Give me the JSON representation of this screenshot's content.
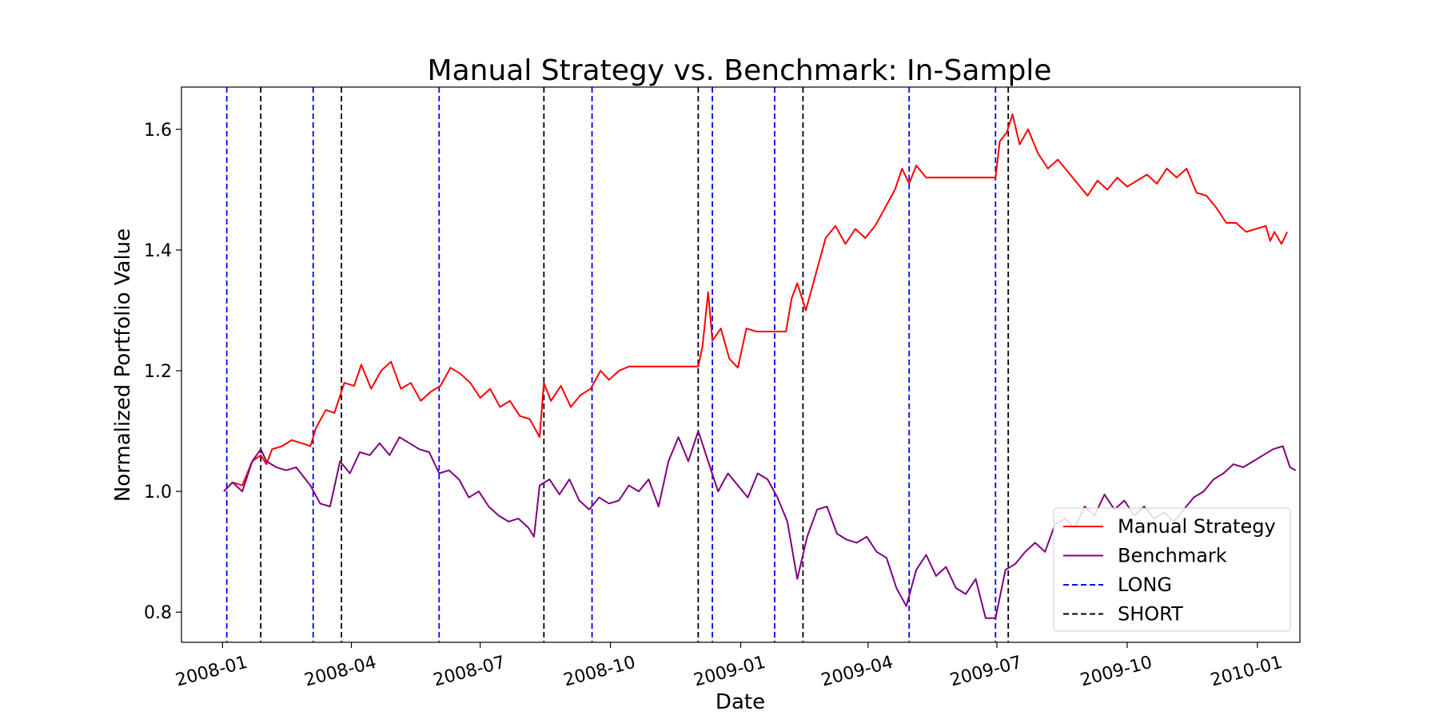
{
  "chart_data": {
    "type": "line",
    "title": "Manual Strategy vs. Benchmark: In-Sample",
    "xlabel": "Date",
    "ylabel": "Normalized Portfolio Value",
    "xlim": [
      "2007-12-03",
      "2010-01-31"
    ],
    "ylim": [
      0.75,
      1.67
    ],
    "x_ticks": [
      "2008-01",
      "2008-04",
      "2008-07",
      "2008-10",
      "2009-01",
      "2009-04",
      "2009-07",
      "2009-10",
      "2010-01"
    ],
    "y_ticks": [
      0.8,
      1.0,
      1.2,
      1.4,
      1.6
    ],
    "y_tick_labels": [
      "0.8",
      "1.0",
      "1.2",
      "1.4",
      "1.6"
    ],
    "grid": false,
    "legend_position": "lower-right",
    "series": [
      {
        "name": "Manual Strategy",
        "color": "#ff0000",
        "points": [
          [
            "2008-01-02",
            1.0
          ],
          [
            "2008-01-08",
            1.015
          ],
          [
            "2008-01-15",
            1.01
          ],
          [
            "2008-01-22",
            1.05
          ],
          [
            "2008-01-28",
            1.06
          ],
          [
            "2008-02-01",
            1.045
          ],
          [
            "2008-02-05",
            1.07
          ],
          [
            "2008-02-12",
            1.075
          ],
          [
            "2008-02-19",
            1.085
          ],
          [
            "2008-02-26",
            1.08
          ],
          [
            "2008-03-03",
            1.075
          ],
          [
            "2008-03-07",
            1.105
          ],
          [
            "2008-03-14",
            1.135
          ],
          [
            "2008-03-20",
            1.13
          ],
          [
            "2008-03-27",
            1.18
          ],
          [
            "2008-04-03",
            1.175
          ],
          [
            "2008-04-08",
            1.21
          ],
          [
            "2008-04-15",
            1.17
          ],
          [
            "2008-04-22",
            1.2
          ],
          [
            "2008-04-29",
            1.215
          ],
          [
            "2008-05-06",
            1.17
          ],
          [
            "2008-05-13",
            1.18
          ],
          [
            "2008-05-20",
            1.15
          ],
          [
            "2008-05-27",
            1.165
          ],
          [
            "2008-06-03",
            1.175
          ],
          [
            "2008-06-10",
            1.205
          ],
          [
            "2008-06-17",
            1.195
          ],
          [
            "2008-06-24",
            1.18
          ],
          [
            "2008-07-01",
            1.155
          ],
          [
            "2008-07-08",
            1.17
          ],
          [
            "2008-07-15",
            1.14
          ],
          [
            "2008-07-22",
            1.15
          ],
          [
            "2008-07-29",
            1.125
          ],
          [
            "2008-08-05",
            1.12
          ],
          [
            "2008-08-12",
            1.09
          ],
          [
            "2008-08-15",
            1.18
          ],
          [
            "2008-08-20",
            1.15
          ],
          [
            "2008-08-27",
            1.175
          ],
          [
            "2008-09-03",
            1.14
          ],
          [
            "2008-09-10",
            1.16
          ],
          [
            "2008-09-17",
            1.17
          ],
          [
            "2008-09-24",
            1.2
          ],
          [
            "2008-09-30",
            1.185
          ],
          [
            "2008-10-07",
            1.2
          ],
          [
            "2008-10-14",
            1.207
          ],
          [
            "2008-12-02",
            1.207
          ],
          [
            "2008-12-05",
            1.24
          ],
          [
            "2008-12-09",
            1.33
          ],
          [
            "2008-12-12",
            1.25
          ],
          [
            "2008-12-18",
            1.27
          ],
          [
            "2008-12-24",
            1.22
          ],
          [
            "2008-12-30",
            1.205
          ],
          [
            "2009-01-05",
            1.27
          ],
          [
            "2009-01-12",
            1.265
          ],
          [
            "2009-01-19",
            1.265
          ],
          [
            "2009-01-26",
            1.265
          ],
          [
            "2009-02-02",
            1.265
          ],
          [
            "2009-02-06",
            1.32
          ],
          [
            "2009-02-10",
            1.345
          ],
          [
            "2009-02-16",
            1.3
          ],
          [
            "2009-02-23",
            1.36
          ],
          [
            "2009-03-02",
            1.42
          ],
          [
            "2009-03-09",
            1.44
          ],
          [
            "2009-03-16",
            1.41
          ],
          [
            "2009-03-23",
            1.435
          ],
          [
            "2009-03-30",
            1.42
          ],
          [
            "2009-04-06",
            1.44
          ],
          [
            "2009-04-13",
            1.47
          ],
          [
            "2009-04-20",
            1.5
          ],
          [
            "2009-04-25",
            1.535
          ],
          [
            "2009-04-30",
            1.51
          ],
          [
            "2009-05-05",
            1.54
          ],
          [
            "2009-05-12",
            1.52
          ],
          [
            "2009-06-01",
            1.52
          ],
          [
            "2009-06-25",
            1.52
          ],
          [
            "2009-06-30",
            1.52
          ],
          [
            "2009-07-03",
            1.58
          ],
          [
            "2009-07-08",
            1.595
          ],
          [
            "2009-07-12",
            1.625
          ],
          [
            "2009-07-17",
            1.575
          ],
          [
            "2009-07-23",
            1.6
          ],
          [
            "2009-07-30",
            1.56
          ],
          [
            "2009-08-06",
            1.535
          ],
          [
            "2009-08-13",
            1.55
          ],
          [
            "2009-08-20",
            1.53
          ],
          [
            "2009-08-27",
            1.51
          ],
          [
            "2009-09-03",
            1.49
          ],
          [
            "2009-09-10",
            1.515
          ],
          [
            "2009-09-17",
            1.5
          ],
          [
            "2009-09-24",
            1.52
          ],
          [
            "2009-10-01",
            1.505
          ],
          [
            "2009-10-08",
            1.515
          ],
          [
            "2009-10-15",
            1.525
          ],
          [
            "2009-10-22",
            1.51
          ],
          [
            "2009-10-29",
            1.535
          ],
          [
            "2009-11-05",
            1.52
          ],
          [
            "2009-11-12",
            1.535
          ],
          [
            "2009-11-19",
            1.495
          ],
          [
            "2009-11-26",
            1.49
          ],
          [
            "2009-12-03",
            1.47
          ],
          [
            "2009-12-10",
            1.445
          ],
          [
            "2009-12-17",
            1.445
          ],
          [
            "2009-12-24",
            1.43
          ],
          [
            "2009-12-31",
            1.435
          ],
          [
            "2010-01-07",
            1.44
          ],
          [
            "2010-01-10",
            1.415
          ],
          [
            "2010-01-13",
            1.43
          ],
          [
            "2010-01-18",
            1.41
          ],
          [
            "2010-01-22",
            1.43
          ]
        ]
      },
      {
        "name": "Benchmark",
        "color": "#800080",
        "points": [
          [
            "2008-01-02",
            1.0
          ],
          [
            "2008-01-08",
            1.015
          ],
          [
            "2008-01-15",
            1.0
          ],
          [
            "2008-01-22",
            1.05
          ],
          [
            "2008-01-28",
            1.07
          ],
          [
            "2008-02-01",
            1.05
          ],
          [
            "2008-02-08",
            1.04
          ],
          [
            "2008-02-15",
            1.035
          ],
          [
            "2008-02-22",
            1.04
          ],
          [
            "2008-03-03",
            1.01
          ],
          [
            "2008-03-10",
            0.98
          ],
          [
            "2008-03-17",
            0.975
          ],
          [
            "2008-03-24",
            1.05
          ],
          [
            "2008-03-31",
            1.03
          ],
          [
            "2008-04-07",
            1.065
          ],
          [
            "2008-04-14",
            1.06
          ],
          [
            "2008-04-21",
            1.08
          ],
          [
            "2008-04-28",
            1.06
          ],
          [
            "2008-05-05",
            1.09
          ],
          [
            "2008-05-12",
            1.08
          ],
          [
            "2008-05-19",
            1.07
          ],
          [
            "2008-05-26",
            1.065
          ],
          [
            "2008-06-02",
            1.03
          ],
          [
            "2008-06-09",
            1.035
          ],
          [
            "2008-06-16",
            1.02
          ],
          [
            "2008-06-23",
            0.99
          ],
          [
            "2008-06-30",
            1.0
          ],
          [
            "2008-07-07",
            0.975
          ],
          [
            "2008-07-14",
            0.96
          ],
          [
            "2008-07-21",
            0.95
          ],
          [
            "2008-07-28",
            0.955
          ],
          [
            "2008-08-04",
            0.94
          ],
          [
            "2008-08-08",
            0.925
          ],
          [
            "2008-08-12",
            1.01
          ],
          [
            "2008-08-19",
            1.02
          ],
          [
            "2008-08-26",
            0.995
          ],
          [
            "2008-09-02",
            1.02
          ],
          [
            "2008-09-09",
            0.985
          ],
          [
            "2008-09-16",
            0.97
          ],
          [
            "2008-09-23",
            0.99
          ],
          [
            "2008-09-30",
            0.98
          ],
          [
            "2008-10-07",
            0.985
          ],
          [
            "2008-10-14",
            1.01
          ],
          [
            "2008-10-21",
            1.0
          ],
          [
            "2008-10-28",
            1.02
          ],
          [
            "2008-11-04",
            0.975
          ],
          [
            "2008-11-11",
            1.05
          ],
          [
            "2008-11-18",
            1.09
          ],
          [
            "2008-11-25",
            1.05
          ],
          [
            "2008-12-02",
            1.1
          ],
          [
            "2008-12-09",
            1.05
          ],
          [
            "2008-12-16",
            1.0
          ],
          [
            "2008-12-23",
            1.03
          ],
          [
            "2008-12-30",
            1.01
          ],
          [
            "2009-01-06",
            0.99
          ],
          [
            "2009-01-13",
            1.03
          ],
          [
            "2009-01-20",
            1.02
          ],
          [
            "2009-01-27",
            0.99
          ],
          [
            "2009-02-03",
            0.95
          ],
          [
            "2009-02-10",
            0.855
          ],
          [
            "2009-02-17",
            0.925
          ],
          [
            "2009-02-24",
            0.97
          ],
          [
            "2009-03-03",
            0.975
          ],
          [
            "2009-03-10",
            0.93
          ],
          [
            "2009-03-17",
            0.92
          ],
          [
            "2009-03-24",
            0.915
          ],
          [
            "2009-03-31",
            0.925
          ],
          [
            "2009-04-07",
            0.9
          ],
          [
            "2009-04-14",
            0.89
          ],
          [
            "2009-04-21",
            0.84
          ],
          [
            "2009-04-28",
            0.81
          ],
          [
            "2009-05-05",
            0.87
          ],
          [
            "2009-05-12",
            0.895
          ],
          [
            "2009-05-19",
            0.86
          ],
          [
            "2009-05-26",
            0.875
          ],
          [
            "2009-06-02",
            0.84
          ],
          [
            "2009-06-09",
            0.83
          ],
          [
            "2009-06-16",
            0.855
          ],
          [
            "2009-06-23",
            0.79
          ],
          [
            "2009-06-30",
            0.79
          ],
          [
            "2009-07-07",
            0.87
          ],
          [
            "2009-07-14",
            0.88
          ],
          [
            "2009-07-21",
            0.9
          ],
          [
            "2009-07-28",
            0.915
          ],
          [
            "2009-08-04",
            0.9
          ],
          [
            "2009-08-11",
            0.945
          ],
          [
            "2009-08-18",
            0.955
          ],
          [
            "2009-08-25",
            0.94
          ],
          [
            "2009-09-01",
            0.975
          ],
          [
            "2009-09-08",
            0.96
          ],
          [
            "2009-09-15",
            0.995
          ],
          [
            "2009-09-22",
            0.97
          ],
          [
            "2009-09-29",
            0.985
          ],
          [
            "2009-10-06",
            0.96
          ],
          [
            "2009-10-13",
            0.975
          ],
          [
            "2009-10-20",
            0.955
          ],
          [
            "2009-10-27",
            0.965
          ],
          [
            "2009-11-03",
            0.95
          ],
          [
            "2009-11-10",
            0.97
          ],
          [
            "2009-11-17",
            0.99
          ],
          [
            "2009-11-24",
            1.0
          ],
          [
            "2009-12-01",
            1.02
          ],
          [
            "2009-12-08",
            1.03
          ],
          [
            "2009-12-15",
            1.045
          ],
          [
            "2009-12-22",
            1.04
          ],
          [
            "2009-12-29",
            1.05
          ],
          [
            "2010-01-05",
            1.06
          ],
          [
            "2010-01-12",
            1.07
          ],
          [
            "2010-01-19",
            1.075
          ],
          [
            "2010-01-24",
            1.04
          ],
          [
            "2010-01-28",
            1.035
          ]
        ]
      }
    ],
    "vertical_lines": [
      {
        "series": "LONG",
        "date": "2008-01-04"
      },
      {
        "series": "SHORT",
        "date": "2008-01-28"
      },
      {
        "series": "LONG",
        "date": "2008-03-05"
      },
      {
        "series": "SHORT",
        "date": "2008-03-25"
      },
      {
        "series": "LONG",
        "date": "2008-06-02"
      },
      {
        "series": "SHORT",
        "date": "2008-08-15"
      },
      {
        "series": "LONG",
        "date": "2008-09-18"
      },
      {
        "series": "SHORT",
        "date": "2008-12-02"
      },
      {
        "series": "LONG",
        "date": "2008-12-12"
      },
      {
        "series": "LONG",
        "date": "2009-01-25"
      },
      {
        "series": "SHORT",
        "date": "2009-02-14"
      },
      {
        "series": "LONG",
        "date": "2009-04-30"
      },
      {
        "series": "LONG",
        "date": "2009-06-30"
      },
      {
        "series": "SHORT",
        "date": "2009-07-09"
      }
    ],
    "legend": [
      {
        "label": "Manual Strategy",
        "color": "#ff0000",
        "style": "solid"
      },
      {
        "label": "Benchmark",
        "color": "#800080",
        "style": "solid"
      },
      {
        "label": "LONG",
        "color": "#0000ff",
        "style": "dashed"
      },
      {
        "label": "SHORT",
        "color": "#000000",
        "style": "dashed"
      }
    ]
  }
}
